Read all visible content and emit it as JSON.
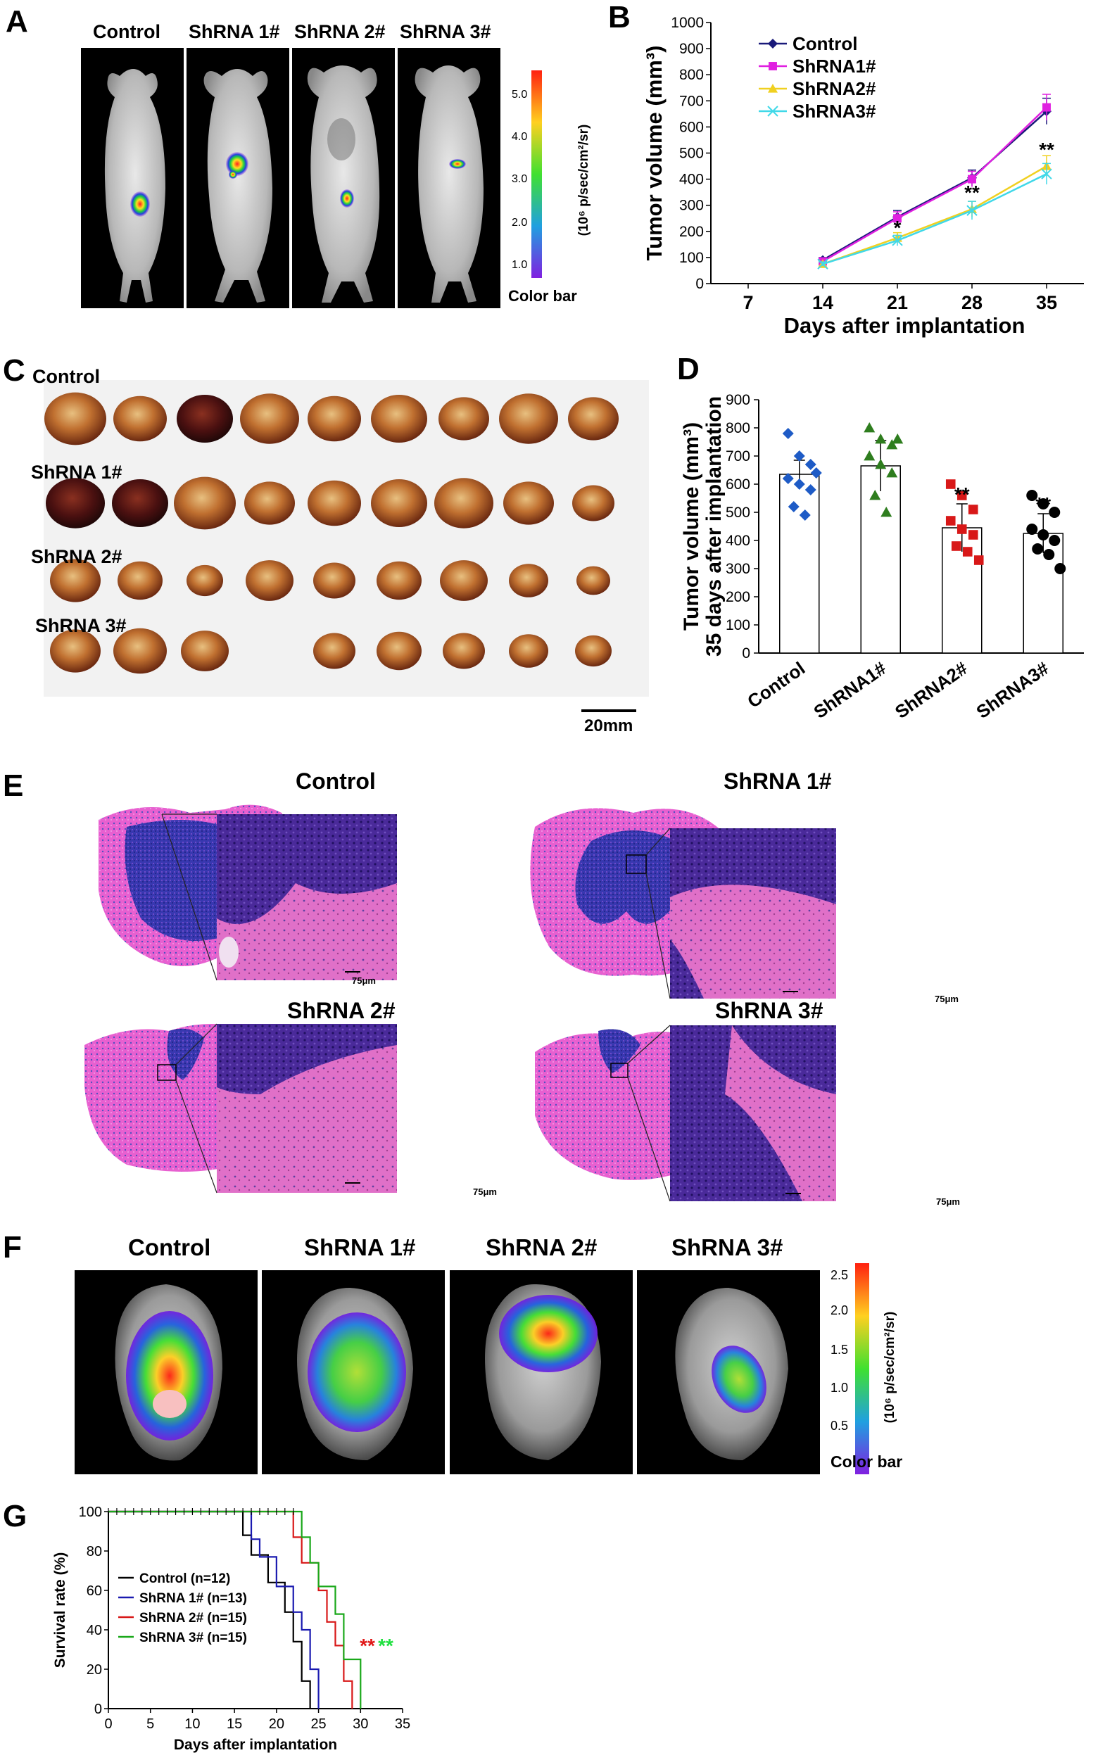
{
  "panels": {
    "A": {
      "label": "A",
      "groups": [
        "Control",
        "ShRNA 1#",
        "ShRNA 2#",
        "ShRNA 3#"
      ],
      "colorbar": {
        "ticks": [
          "5.0",
          "4.0",
          "3.0",
          "2.0",
          "1.0"
        ],
        "units": "(10⁶ p/sec/cm²/sr)",
        "title": "Color bar"
      }
    },
    "B": {
      "label": "B"
    },
    "C": {
      "label": "C",
      "rows": [
        "Control",
        "ShRNA 1#",
        "ShRNA 2#",
        "ShRNA 3#"
      ],
      "scale_bar": "20mm"
    },
    "D": {
      "label": "D"
    },
    "E": {
      "label": "E",
      "groups": [
        "Control",
        "ShRNA 1#",
        "ShRNA 2#",
        "ShRNA 3#"
      ],
      "scale_bar": "75μm"
    },
    "F": {
      "label": "F",
      "groups": [
        "Control",
        "ShRNA 1#",
        "ShRNA 2#",
        "ShRNA 3#"
      ],
      "colorbar": {
        "ticks": [
          "2.5",
          "2.0",
          "1.5",
          "1.0",
          "0.5"
        ],
        "units": "(10⁶ p/sec/cm²/sr)",
        "title": "Color bar"
      }
    },
    "G": {
      "label": "G"
    }
  },
  "colors": {
    "control": "#1a1a7a",
    "shrna1": "#e020e0",
    "shrna2": "#f0d020",
    "shrna3": "#40d8e8"
  },
  "chart_data": [
    {
      "id": "B",
      "type": "line",
      "xlabel": "Days after implantation",
      "ylabel": "Tumor volume (mm³)",
      "x": [
        7,
        14,
        21,
        28,
        35
      ],
      "ylim": [
        0,
        1000
      ],
      "yticks": [
        0,
        100,
        200,
        300,
        400,
        500,
        600,
        700,
        800,
        900,
        1000
      ],
      "series": [
        {
          "name": "Control",
          "color": "#1a1a7a",
          "marker": "diamond",
          "x": [
            14,
            21,
            28,
            35
          ],
          "values": [
            90,
            255,
            405,
            660
          ],
          "err": [
            10,
            25,
            30,
            50
          ]
        },
        {
          "name": "ShRNA1#",
          "color": "#e020e0",
          "marker": "square",
          "x": [
            14,
            21,
            28,
            35
          ],
          "values": [
            85,
            250,
            400,
            675
          ],
          "err": [
            10,
            25,
            30,
            50
          ]
        },
        {
          "name": "ShRNA2#",
          "color": "#f0d020",
          "marker": "triangle",
          "x": [
            14,
            21,
            28,
            35
          ],
          "values": [
            75,
            175,
            285,
            450
          ],
          "err": [
            8,
            20,
            30,
            40
          ]
        },
        {
          "name": "ShRNA3#",
          "color": "#40d8e8",
          "marker": "x",
          "x": [
            14,
            21,
            28,
            35
          ],
          "values": [
            75,
            165,
            280,
            420
          ],
          "err": [
            8,
            20,
            35,
            40
          ]
        }
      ],
      "annotations": [
        {
          "x": 21,
          "text": "*",
          "y": 210
        },
        {
          "x": 28,
          "text": "**",
          "y": 345
        },
        {
          "x": 35,
          "text": "**",
          "y": 510
        }
      ]
    },
    {
      "id": "D",
      "type": "bar",
      "ylabel": "Tumor volume (mm³)\n35 days after implantation",
      "ylim": [
        0,
        900
      ],
      "yticks": [
        0,
        100,
        200,
        300,
        400,
        500,
        600,
        700,
        800,
        900
      ],
      "categories": [
        "Control",
        "ShRNA1#",
        "ShRNA2#",
        "ShRNA3#"
      ],
      "values": [
        635,
        665,
        445,
        425
      ],
      "err": [
        50,
        90,
        85,
        70
      ],
      "marker_colors": [
        "#1e5bc6",
        "#2e7d1e",
        "#d81818",
        "#000000"
      ],
      "markers": [
        "diamond",
        "triangle",
        "square",
        "circle"
      ],
      "points": [
        [
          780,
          700,
          670,
          620,
          600,
          580,
          520,
          490,
          640
        ],
        [
          800,
          760,
          740,
          700,
          670,
          640,
          560,
          500,
          760
        ],
        [
          600,
          560,
          510,
          470,
          440,
          420,
          380,
          360,
          330
        ],
        [
          560,
          530,
          500,
          440,
          420,
          400,
          370,
          350,
          300
        ]
      ],
      "annotations": [
        "",
        "",
        "**",
        "**"
      ]
    },
    {
      "id": "G",
      "type": "line",
      "xlabel": "Days after implantation",
      "ylabel": "Survival rate (%)",
      "xlim": [
        0,
        35
      ],
      "xticks": [
        0,
        5,
        10,
        15,
        20,
        25,
        30,
        35
      ],
      "ylim": [
        0,
        100
      ],
      "yticks": [
        0,
        20,
        40,
        60,
        80,
        100
      ],
      "series": [
        {
          "name": "Control (n=12)",
          "color": "#000000",
          "steps": [
            [
              0,
              100
            ],
            [
              16,
              100
            ],
            [
              16,
              88
            ],
            [
              17,
              88
            ],
            [
              17,
              78
            ],
            [
              19,
              78
            ],
            [
              19,
              64
            ],
            [
              21,
              64
            ],
            [
              21,
              49
            ],
            [
              22,
              49
            ],
            [
              22,
              34
            ],
            [
              23,
              34
            ],
            [
              23,
              14
            ],
            [
              24,
              14
            ],
            [
              24,
              0
            ]
          ]
        },
        {
          "name": "ShRNA 1# (n=13)",
          "color": "#1a1ab0",
          "steps": [
            [
              0,
              100
            ],
            [
              17,
              100
            ],
            [
              17,
              86
            ],
            [
              18,
              86
            ],
            [
              18,
              77
            ],
            [
              20,
              77
            ],
            [
              20,
              62
            ],
            [
              22,
              62
            ],
            [
              22,
              49
            ],
            [
              23,
              49
            ],
            [
              23,
              40
            ],
            [
              24,
              40
            ],
            [
              24,
              20
            ],
            [
              25,
              20
            ],
            [
              25,
              0
            ]
          ]
        },
        {
          "name": "ShRNA 2# (n=15)",
          "color": "#d81818",
          "steps": [
            [
              0,
              100
            ],
            [
              22,
              100
            ],
            [
              22,
              87
            ],
            [
              23,
              87
            ],
            [
              23,
              74
            ],
            [
              25,
              74
            ],
            [
              25,
              60
            ],
            [
              26,
              60
            ],
            [
              26,
              44
            ],
            [
              27,
              44
            ],
            [
              27,
              32
            ],
            [
              28,
              32
            ],
            [
              28,
              14
            ],
            [
              29,
              14
            ],
            [
              29,
              0
            ]
          ]
        },
        {
          "name": "ShRNA 3# (n=15)",
          "color": "#1aa81a",
          "steps": [
            [
              0,
              100
            ],
            [
              23,
              100
            ],
            [
              23,
              87
            ],
            [
              24,
              87
            ],
            [
              24,
              74
            ],
            [
              25,
              74
            ],
            [
              25,
              62
            ],
            [
              27,
              62
            ],
            [
              27,
              48
            ],
            [
              28,
              48
            ],
            [
              28,
              25
            ],
            [
              30,
              25
            ],
            [
              30,
              0
            ]
          ]
        }
      ],
      "annotations": [
        {
          "text": "**",
          "color": "#e01818"
        },
        {
          "text": "**",
          "color": "#20e040"
        }
      ]
    }
  ]
}
